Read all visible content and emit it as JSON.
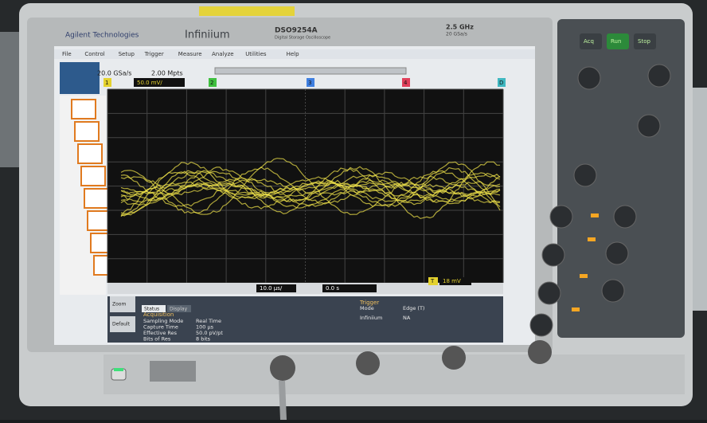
{
  "bezel": {
    "brand": "Agilent Technologies",
    "product": "Infiniium",
    "model": "DSO9254A",
    "model_subtitle": "Digital Storage Oscilloscope",
    "bandwidth": "2.5 GHz",
    "sample_rate": "20 GSa/s"
  },
  "screen": {
    "menu": [
      "File",
      "Control",
      "Setup",
      "Trigger",
      "Measure",
      "Analyze",
      "Utilities",
      "Help"
    ],
    "acquisition": {
      "rate": "20.0 GSa/s",
      "points": "2.00 Mpts"
    },
    "channels": [
      {
        "label": "1",
        "scale": "50.0 mV/"
      },
      {
        "label": "2"
      },
      {
        "label": "3"
      },
      {
        "label": "4"
      },
      {
        "label": "D"
      }
    ],
    "timebase": {
      "scale": "10.0 µs/",
      "position": "0.0 s",
      "trigger_label": "T",
      "trigger_level": "18 mV"
    },
    "tabs": [
      "Status",
      "Display"
    ],
    "side_buttons": [
      "Zoom",
      "Default"
    ],
    "status": {
      "heading": "Acquisition",
      "rows": [
        [
          "Sampling Mode",
          "Real Time"
        ],
        [
          "Capture Time",
          "100 µs"
        ],
        [
          "Effective Res",
          "50.0 pV/pt"
        ],
        [
          "Bits of Res",
          "8 bits"
        ]
      ],
      "trigger_heading": "Trigger",
      "trigger_rows": [
        [
          "Mode",
          "Edge (T)"
        ],
        [
          "Infiniium",
          "NA"
        ]
      ]
    }
  },
  "front_panel": {
    "acq_buttons": [
      "Acq",
      "Run",
      "Stop"
    ]
  }
}
